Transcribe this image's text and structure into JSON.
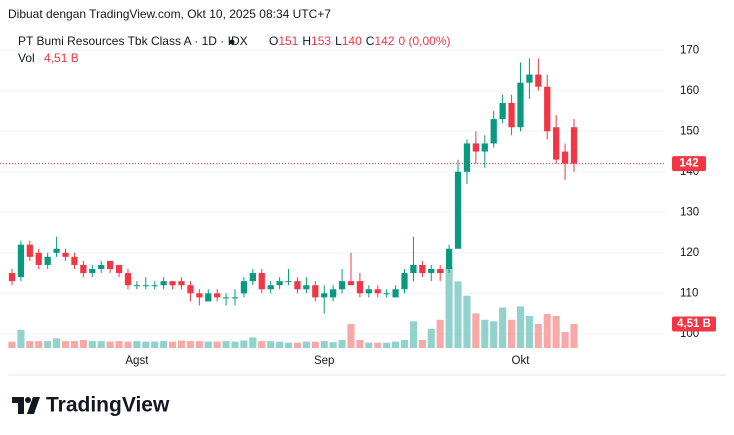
{
  "chart_data": {
    "type": "candlestick",
    "title": "Dibuat dengan TradingView.com, Okt 10, 2025 08:34 UTC+7",
    "legend": {
      "name": "PT Bumi Resources Tbk Class A · 1D · IDX",
      "open_letter": "O",
      "high_letter": "H",
      "low_letter": "L",
      "close_letter": "C",
      "change": "0 (0,00%)",
      "volume_letter": "Vol"
    },
    "categories": [
      null,
      null,
      null,
      null,
      null,
      null,
      null,
      null,
      null,
      null,
      null,
      null,
      null,
      null,
      "Agst",
      null,
      null,
      null,
      null,
      null,
      null,
      null,
      null,
      null,
      null,
      null,
      null,
      null,
      null,
      null,
      null,
      null,
      null,
      null,
      null,
      "Sep",
      null,
      null,
      null,
      null,
      null,
      null,
      null,
      null,
      null,
      null,
      null,
      null,
      null,
      null,
      null,
      null,
      null,
      null,
      null,
      null,
      null,
      "Okt",
      null,
      null,
      null,
      null,
      null,
      null
    ],
    "open": [
      115,
      114,
      122,
      120,
      117,
      120,
      120,
      119,
      117,
      115,
      116,
      118,
      117,
      115,
      112,
      112,
      112,
      112,
      113,
      113,
      112,
      110,
      108,
      110,
      109,
      109,
      110,
      113,
      115,
      111,
      112,
      113,
      113,
      111,
      112,
      109,
      109,
      111,
      113,
      113,
      110,
      111,
      110,
      109,
      111,
      115,
      117,
      115,
      116,
      116,
      121,
      140,
      147,
      145,
      147,
      153,
      157,
      151,
      162,
      164,
      161,
      151,
      145,
      151
    ],
    "high": [
      116,
      123,
      123,
      121,
      120,
      124,
      121,
      120,
      118,
      117,
      118,
      118,
      117,
      116,
      113,
      114,
      113,
      114,
      113,
      114,
      113,
      111,
      111,
      111,
      110,
      111,
      114,
      116,
      116,
      113,
      114,
      116,
      114,
      114,
      113,
      112,
      112,
      116,
      120,
      115,
      112,
      112,
      111,
      112,
      116,
      124,
      118,
      117,
      117,
      122,
      143,
      148,
      150,
      149,
      155,
      159,
      159,
      167,
      168,
      168,
      164,
      154,
      147,
      153
    ],
    "low": [
      112,
      113,
      118,
      116,
      116,
      119,
      118,
      116,
      114,
      114,
      115,
      115,
      114,
      111,
      111,
      111,
      111,
      111,
      111,
      111,
      108,
      107,
      108,
      108,
      107,
      107,
      109,
      112,
      110,
      110,
      111,
      112,
      110,
      110,
      108,
      105,
      108,
      110,
      112,
      109,
      109,
      109,
      109,
      109,
      110,
      113,
      114,
      113,
      113,
      115,
      121,
      137,
      142,
      141,
      146,
      152,
      149,
      150,
      158,
      160,
      148,
      142,
      138,
      140
    ],
    "close": [
      113,
      122,
      119,
      117,
      119,
      121,
      119,
      117,
      115,
      116,
      117,
      116,
      115,
      112,
      112,
      112,
      112,
      113,
      112,
      112,
      110,
      109,
      110,
      109,
      109,
      109,
      113,
      115,
      111,
      112,
      113,
      113,
      111,
      112,
      109,
      110,
      111,
      113,
      112,
      110,
      111,
      110,
      110,
      111,
      115,
      117,
      115,
      116,
      115,
      121,
      140,
      147,
      145,
      147,
      153,
      157,
      151,
      162,
      164,
      161,
      150,
      143,
      142,
      142
    ],
    "volume": [
      1.2,
      3.4,
      1.3,
      1.3,
      1.3,
      1.8,
      1.3,
      1.3,
      1.5,
      1.3,
      1.3,
      1.2,
      1.3,
      1.2,
      1.3,
      1.2,
      1.2,
      1.3,
      1.2,
      1.4,
      1.3,
      1.3,
      1.2,
      1.2,
      1.3,
      1.2,
      1.4,
      2.0,
      1.3,
      1.3,
      1.2,
      1.0,
      1.0,
      1.2,
      1.2,
      1.3,
      1.1,
      1.5,
      4.5,
      1.5,
      1.0,
      1.0,
      1.0,
      1.2,
      1.5,
      5.0,
      1.5,
      3.6,
      5.3,
      15.2,
      12.5,
      9.8,
      6.5,
      5.3,
      5.0,
      7.6,
      5.3,
      7.8,
      6.0,
      4.5,
      6.4,
      6.0,
      3.0,
      4.51
    ],
    "last_volume": {
      "value": 4.51,
      "label": "4,51 B"
    },
    "ylim": [
      96.5,
      175
    ],
    "yticks": [
      100,
      110,
      120,
      130,
      140,
      150,
      160,
      170
    ],
    "grid": true,
    "up_color": "#089981",
    "down_color": "#f23645",
    "up_volume_color": "#92d2cc",
    "down_volume_color": "#f7a9a7",
    "footer": "TradingView"
  }
}
